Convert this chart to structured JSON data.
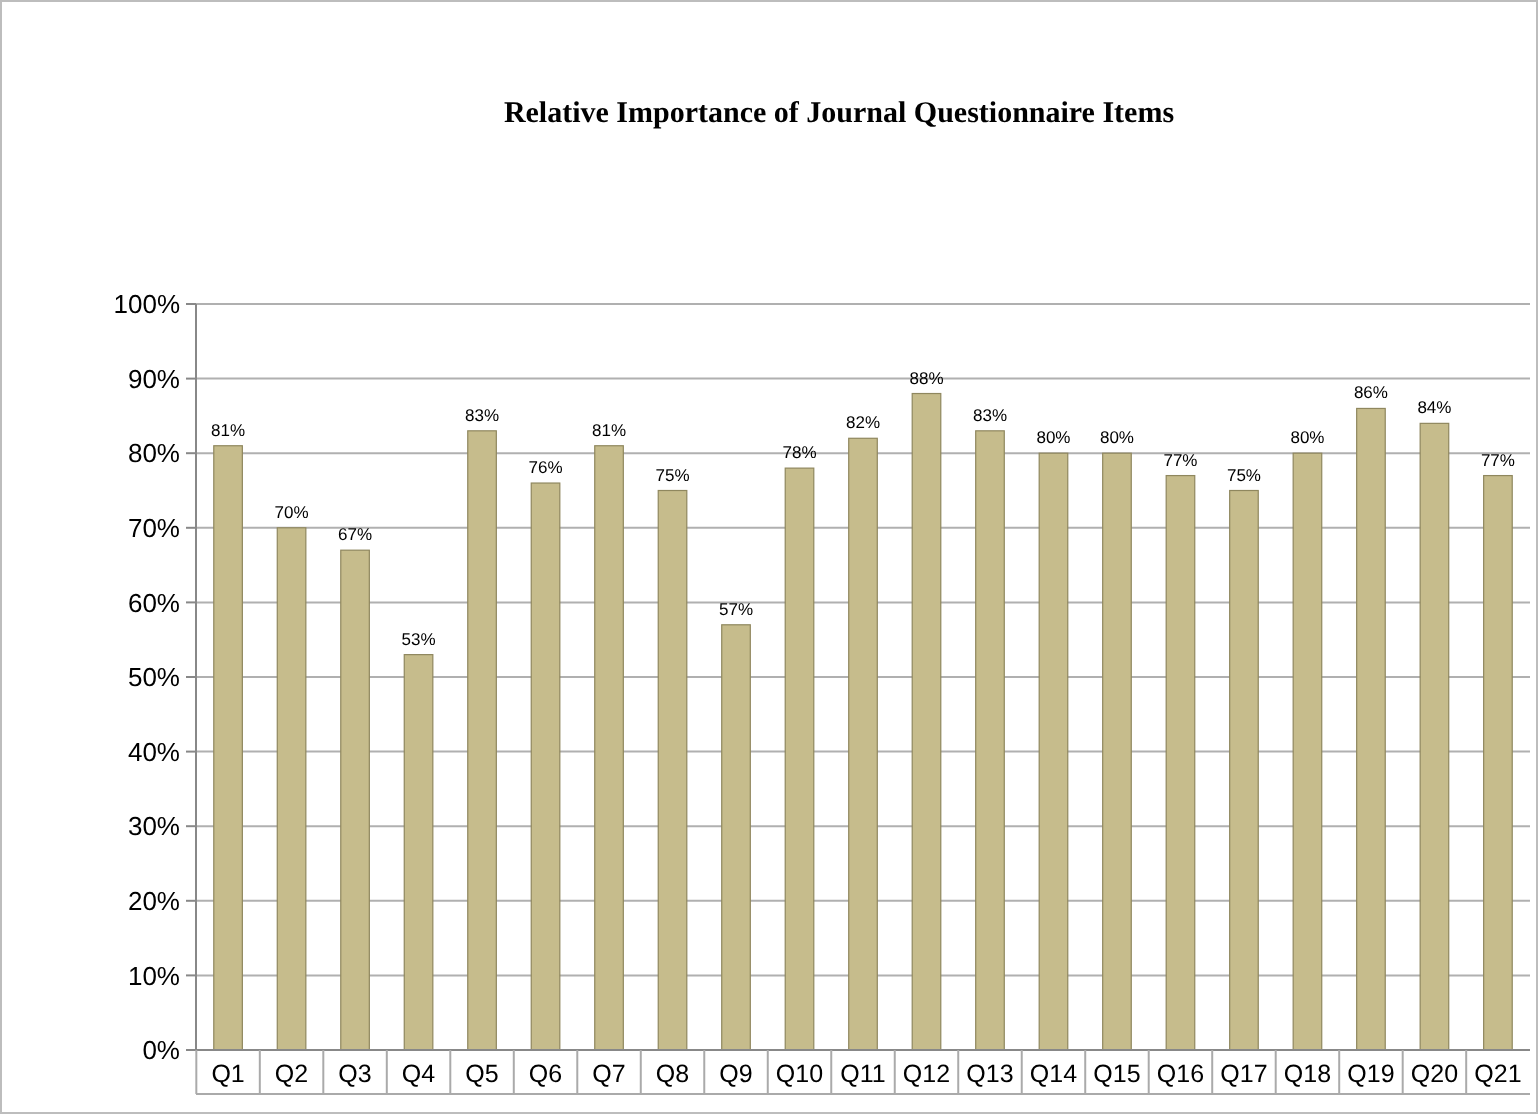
{
  "chart_data": {
    "type": "bar",
    "title": "Relative Importance of Journal Questionnaire Items",
    "categories": [
      "Q1",
      "Q2",
      "Q3",
      "Q4",
      "Q5",
      "Q6",
      "Q7",
      "Q8",
      "Q9",
      "Q10",
      "Q11",
      "Q12",
      "Q13",
      "Q14",
      "Q15",
      "Q16",
      "Q17",
      "Q18",
      "Q19",
      "Q20",
      "Q21"
    ],
    "values": [
      81,
      70,
      67,
      53,
      83,
      76,
      81,
      75,
      57,
      78,
      82,
      88,
      83,
      80,
      80,
      77,
      75,
      80,
      86,
      84,
      77
    ],
    "value_labels": [
      "81%",
      "70%",
      "67%",
      "53%",
      "83%",
      "76%",
      "81%",
      "75%",
      "57%",
      "78%",
      "82%",
      "88%",
      "83%",
      "80%",
      "80%",
      "77%",
      "75%",
      "80%",
      "86%",
      "84%",
      "77%"
    ],
    "color": "#c6bc8c",
    "ylim": [
      0,
      100
    ],
    "yticks": [
      {
        "value": 0,
        "label": "0%"
      },
      {
        "value": 10,
        "label": "10%"
      },
      {
        "value": 20,
        "label": "20%"
      },
      {
        "value": 30,
        "label": "30%"
      },
      {
        "value": 40,
        "label": "40%"
      },
      {
        "value": 50,
        "label": "50%"
      },
      {
        "value": 60,
        "label": "60%"
      },
      {
        "value": 70,
        "label": "70%"
      },
      {
        "value": 80,
        "label": "80%"
      },
      {
        "value": 90,
        "label": "90%"
      },
      {
        "value": 100,
        "label": "100%"
      }
    ],
    "grid": "y"
  }
}
